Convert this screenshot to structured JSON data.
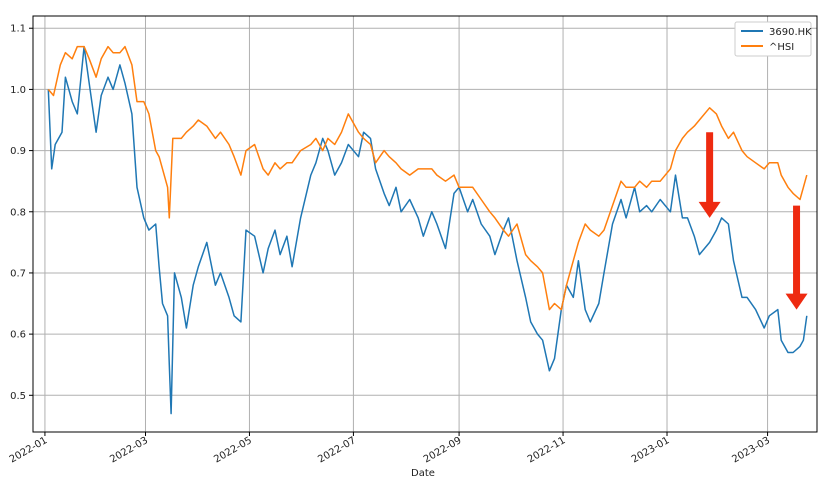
{
  "chart_data": {
    "type": "line",
    "xlabel": "Date",
    "ylabel": "",
    "grid": true,
    "legend_position": "top-right",
    "ylim": [
      0.44,
      1.12
    ],
    "xlim": [
      "2021-12-25",
      "2023-03-30"
    ],
    "yticks": [
      0.5,
      0.6,
      0.7,
      0.8,
      0.9,
      1.0,
      1.1
    ],
    "ytick_labels": [
      "0.5",
      "0.6",
      "0.7",
      "0.8",
      "0.9",
      "1.0",
      "1.1"
    ],
    "xticks": [
      "2022-01-01",
      "2022-03-01",
      "2022-05-01",
      "2022-07-01",
      "2022-09-01",
      "2022-11-01",
      "2023-01-01",
      "2023-03-01"
    ],
    "xtick_labels": [
      "2022-01",
      "2022-03",
      "2022-05",
      "2022-07",
      "2022-09",
      "2022-11",
      "2023-01",
      "2023-03"
    ],
    "series": [
      {
        "name": "3690.HK",
        "color": "#1f77b4",
        "points": [
          [
            "2022-01-03",
            1.0
          ],
          [
            "2022-01-05",
            0.87
          ],
          [
            "2022-01-07",
            0.91
          ],
          [
            "2022-01-11",
            0.93
          ],
          [
            "2022-01-13",
            1.02
          ],
          [
            "2022-01-17",
            0.98
          ],
          [
            "2022-01-20",
            0.96
          ],
          [
            "2022-01-24",
            1.07
          ],
          [
            "2022-01-27",
            1.01
          ],
          [
            "2022-01-31",
            0.93
          ],
          [
            "2022-02-03",
            0.99
          ],
          [
            "2022-02-07",
            1.02
          ],
          [
            "2022-02-10",
            1.0
          ],
          [
            "2022-02-14",
            1.04
          ],
          [
            "2022-02-17",
            1.01
          ],
          [
            "2022-02-21",
            0.96
          ],
          [
            "2022-02-24",
            0.84
          ],
          [
            "2022-02-28",
            0.79
          ],
          [
            "2022-03-03",
            0.77
          ],
          [
            "2022-03-07",
            0.78
          ],
          [
            "2022-03-09",
            0.71
          ],
          [
            "2022-03-11",
            0.65
          ],
          [
            "2022-03-14",
            0.63
          ],
          [
            "2022-03-15",
            0.55
          ],
          [
            "2022-03-16",
            0.47
          ],
          [
            "2022-03-18",
            0.7
          ],
          [
            "2022-03-22",
            0.66
          ],
          [
            "2022-03-25",
            0.61
          ],
          [
            "2022-03-29",
            0.68
          ],
          [
            "2022-04-01",
            0.71
          ],
          [
            "2022-04-06",
            0.75
          ],
          [
            "2022-04-11",
            0.68
          ],
          [
            "2022-04-14",
            0.7
          ],
          [
            "2022-04-19",
            0.66
          ],
          [
            "2022-04-22",
            0.63
          ],
          [
            "2022-04-26",
            0.62
          ],
          [
            "2022-04-29",
            0.77
          ],
          [
            "2022-05-04",
            0.76
          ],
          [
            "2022-05-09",
            0.7
          ],
          [
            "2022-05-12",
            0.74
          ],
          [
            "2022-05-16",
            0.77
          ],
          [
            "2022-05-19",
            0.73
          ],
          [
            "2022-05-23",
            0.76
          ],
          [
            "2022-05-26",
            0.71
          ],
          [
            "2022-05-31",
            0.79
          ],
          [
            "2022-06-06",
            0.86
          ],
          [
            "2022-06-09",
            0.88
          ],
          [
            "2022-06-13",
            0.92
          ],
          [
            "2022-06-16",
            0.9
          ],
          [
            "2022-06-20",
            0.86
          ],
          [
            "2022-06-24",
            0.88
          ],
          [
            "2022-06-28",
            0.91
          ],
          [
            "2022-07-04",
            0.89
          ],
          [
            "2022-07-07",
            0.93
          ],
          [
            "2022-07-11",
            0.92
          ],
          [
            "2022-07-14",
            0.87
          ],
          [
            "2022-07-19",
            0.83
          ],
          [
            "2022-07-22",
            0.81
          ],
          [
            "2022-07-26",
            0.84
          ],
          [
            "2022-07-29",
            0.8
          ],
          [
            "2022-08-03",
            0.82
          ],
          [
            "2022-08-08",
            0.79
          ],
          [
            "2022-08-11",
            0.76
          ],
          [
            "2022-08-16",
            0.8
          ],
          [
            "2022-08-19",
            0.78
          ],
          [
            "2022-08-24",
            0.74
          ],
          [
            "2022-08-29",
            0.83
          ],
          [
            "2022-09-01",
            0.84
          ],
          [
            "2022-09-06",
            0.8
          ],
          [
            "2022-09-09",
            0.82
          ],
          [
            "2022-09-14",
            0.78
          ],
          [
            "2022-09-19",
            0.76
          ],
          [
            "2022-09-22",
            0.73
          ],
          [
            "2022-09-27",
            0.77
          ],
          [
            "2022-09-30",
            0.79
          ],
          [
            "2022-10-05",
            0.72
          ],
          [
            "2022-10-10",
            0.66
          ],
          [
            "2022-10-13",
            0.62
          ],
          [
            "2022-10-17",
            0.6
          ],
          [
            "2022-10-20",
            0.59
          ],
          [
            "2022-10-24",
            0.54
          ],
          [
            "2022-10-27",
            0.56
          ],
          [
            "2022-10-31",
            0.64
          ],
          [
            "2022-11-03",
            0.68
          ],
          [
            "2022-11-07",
            0.66
          ],
          [
            "2022-11-10",
            0.72
          ],
          [
            "2022-11-14",
            0.64
          ],
          [
            "2022-11-17",
            0.62
          ],
          [
            "2022-11-22",
            0.65
          ],
          [
            "2022-11-25",
            0.7
          ],
          [
            "2022-11-30",
            0.78
          ],
          [
            "2022-12-05",
            0.82
          ],
          [
            "2022-12-08",
            0.79
          ],
          [
            "2022-12-13",
            0.84
          ],
          [
            "2022-12-16",
            0.8
          ],
          [
            "2022-12-20",
            0.81
          ],
          [
            "2022-12-23",
            0.8
          ],
          [
            "2022-12-28",
            0.82
          ],
          [
            "2023-01-03",
            0.8
          ],
          [
            "2023-01-06",
            0.86
          ],
          [
            "2023-01-10",
            0.79
          ],
          [
            "2023-01-13",
            0.79
          ],
          [
            "2023-01-17",
            0.76
          ],
          [
            "2023-01-20",
            0.73
          ],
          [
            "2023-01-26",
            0.75
          ],
          [
            "2023-01-30",
            0.77
          ],
          [
            "2023-02-02",
            0.79
          ],
          [
            "2023-02-06",
            0.78
          ],
          [
            "2023-02-09",
            0.72
          ],
          [
            "2023-02-14",
            0.66
          ],
          [
            "2023-02-17",
            0.66
          ],
          [
            "2023-02-22",
            0.64
          ],
          [
            "2023-02-27",
            0.61
          ],
          [
            "2023-03-02",
            0.63
          ],
          [
            "2023-03-07",
            0.64
          ],
          [
            "2023-03-09",
            0.59
          ],
          [
            "2023-03-13",
            0.57
          ],
          [
            "2023-03-16",
            0.57
          ],
          [
            "2023-03-20",
            0.58
          ],
          [
            "2023-03-22",
            0.59
          ],
          [
            "2023-03-24",
            0.63
          ]
        ]
      },
      {
        "name": "^HSI",
        "color": "#ff7f0e",
        "points": [
          [
            "2022-01-03",
            1.0
          ],
          [
            "2022-01-06",
            0.99
          ],
          [
            "2022-01-10",
            1.04
          ],
          [
            "2022-01-13",
            1.06
          ],
          [
            "2022-01-17",
            1.05
          ],
          [
            "2022-01-20",
            1.07
          ],
          [
            "2022-01-24",
            1.07
          ],
          [
            "2022-01-27",
            1.05
          ],
          [
            "2022-01-31",
            1.02
          ],
          [
            "2022-02-03",
            1.05
          ],
          [
            "2022-02-07",
            1.07
          ],
          [
            "2022-02-10",
            1.06
          ],
          [
            "2022-02-14",
            1.06
          ],
          [
            "2022-02-17",
            1.07
          ],
          [
            "2022-02-21",
            1.04
          ],
          [
            "2022-02-24",
            0.98
          ],
          [
            "2022-02-28",
            0.98
          ],
          [
            "2022-03-03",
            0.96
          ],
          [
            "2022-03-07",
            0.9
          ],
          [
            "2022-03-09",
            0.89
          ],
          [
            "2022-03-11",
            0.87
          ],
          [
            "2022-03-14",
            0.84
          ],
          [
            "2022-03-15",
            0.79
          ],
          [
            "2022-03-17",
            0.92
          ],
          [
            "2022-03-22",
            0.92
          ],
          [
            "2022-03-25",
            0.93
          ],
          [
            "2022-03-29",
            0.94
          ],
          [
            "2022-04-01",
            0.95
          ],
          [
            "2022-04-06",
            0.94
          ],
          [
            "2022-04-11",
            0.92
          ],
          [
            "2022-04-14",
            0.93
          ],
          [
            "2022-04-19",
            0.91
          ],
          [
            "2022-04-22",
            0.89
          ],
          [
            "2022-04-26",
            0.86
          ],
          [
            "2022-04-29",
            0.9
          ],
          [
            "2022-05-04",
            0.91
          ],
          [
            "2022-05-09",
            0.87
          ],
          [
            "2022-05-12",
            0.86
          ],
          [
            "2022-05-16",
            0.88
          ],
          [
            "2022-05-19",
            0.87
          ],
          [
            "2022-05-23",
            0.88
          ],
          [
            "2022-05-26",
            0.88
          ],
          [
            "2022-05-31",
            0.9
          ],
          [
            "2022-06-06",
            0.91
          ],
          [
            "2022-06-09",
            0.92
          ],
          [
            "2022-06-13",
            0.9
          ],
          [
            "2022-06-16",
            0.92
          ],
          [
            "2022-06-20",
            0.91
          ],
          [
            "2022-06-24",
            0.93
          ],
          [
            "2022-06-28",
            0.96
          ],
          [
            "2022-07-04",
            0.93
          ],
          [
            "2022-07-07",
            0.92
          ],
          [
            "2022-07-11",
            0.91
          ],
          [
            "2022-07-14",
            0.88
          ],
          [
            "2022-07-19",
            0.9
          ],
          [
            "2022-07-22",
            0.89
          ],
          [
            "2022-07-26",
            0.88
          ],
          [
            "2022-07-29",
            0.87
          ],
          [
            "2022-08-03",
            0.86
          ],
          [
            "2022-08-08",
            0.87
          ],
          [
            "2022-08-11",
            0.87
          ],
          [
            "2022-08-16",
            0.87
          ],
          [
            "2022-08-19",
            0.86
          ],
          [
            "2022-08-24",
            0.85
          ],
          [
            "2022-08-29",
            0.86
          ],
          [
            "2022-09-01",
            0.84
          ],
          [
            "2022-09-06",
            0.84
          ],
          [
            "2022-09-09",
            0.84
          ],
          [
            "2022-09-14",
            0.82
          ],
          [
            "2022-09-19",
            0.8
          ],
          [
            "2022-09-22",
            0.79
          ],
          [
            "2022-09-27",
            0.77
          ],
          [
            "2022-09-30",
            0.76
          ],
          [
            "2022-10-05",
            0.78
          ],
          [
            "2022-10-10",
            0.73
          ],
          [
            "2022-10-13",
            0.72
          ],
          [
            "2022-10-17",
            0.71
          ],
          [
            "2022-10-20",
            0.7
          ],
          [
            "2022-10-24",
            0.64
          ],
          [
            "2022-10-27",
            0.65
          ],
          [
            "2022-10-31",
            0.64
          ],
          [
            "2022-11-03",
            0.68
          ],
          [
            "2022-11-07",
            0.72
          ],
          [
            "2022-11-10",
            0.75
          ],
          [
            "2022-11-14",
            0.78
          ],
          [
            "2022-11-17",
            0.77
          ],
          [
            "2022-11-22",
            0.76
          ],
          [
            "2022-11-25",
            0.77
          ],
          [
            "2022-11-30",
            0.81
          ],
          [
            "2022-12-05",
            0.85
          ],
          [
            "2022-12-08",
            0.84
          ],
          [
            "2022-12-13",
            0.84
          ],
          [
            "2022-12-16",
            0.85
          ],
          [
            "2022-12-20",
            0.84
          ],
          [
            "2022-12-23",
            0.85
          ],
          [
            "2022-12-28",
            0.85
          ],
          [
            "2023-01-03",
            0.87
          ],
          [
            "2023-01-06",
            0.9
          ],
          [
            "2023-01-10",
            0.92
          ],
          [
            "2023-01-13",
            0.93
          ],
          [
            "2023-01-17",
            0.94
          ],
          [
            "2023-01-20",
            0.95
          ],
          [
            "2023-01-26",
            0.97
          ],
          [
            "2023-01-30",
            0.96
          ],
          [
            "2023-02-02",
            0.94
          ],
          [
            "2023-02-06",
            0.92
          ],
          [
            "2023-02-09",
            0.93
          ],
          [
            "2023-02-14",
            0.9
          ],
          [
            "2023-02-17",
            0.89
          ],
          [
            "2023-02-22",
            0.88
          ],
          [
            "2023-02-27",
            0.87
          ],
          [
            "2023-03-02",
            0.88
          ],
          [
            "2023-03-07",
            0.88
          ],
          [
            "2023-03-09",
            0.86
          ],
          [
            "2023-03-13",
            0.84
          ],
          [
            "2023-03-16",
            0.83
          ],
          [
            "2023-03-20",
            0.82
          ],
          [
            "2023-03-22",
            0.84
          ],
          [
            "2023-03-24",
            0.86
          ]
        ]
      }
    ],
    "annotations": [
      {
        "type": "arrow",
        "color": "#ee2a10",
        "from": [
          "2023-01-26",
          0.93
        ],
        "to": [
          "2023-01-26",
          0.79
        ]
      },
      {
        "type": "arrow",
        "color": "#ee2a10",
        "from": [
          "2023-03-18",
          0.81
        ],
        "to": [
          "2023-03-18",
          0.64
        ]
      }
    ]
  }
}
